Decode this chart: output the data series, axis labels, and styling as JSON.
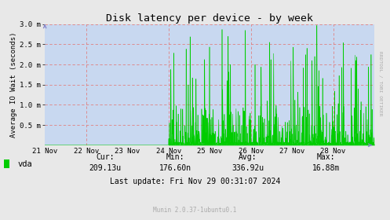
{
  "title": "Disk latency per device - by week",
  "ylabel": "Average IO Wait (seconds)",
  "bg_color": "#e8e8e8",
  "plot_bg_color": "#c8d8f0",
  "grid_color": "#e08080",
  "line_color": "#00cc00",
  "ylim": [
    0,
    3.0
  ],
  "yticks": [
    0.5,
    1.0,
    1.5,
    2.0,
    2.5,
    3.0
  ],
  "ytick_labels": [
    "0.5 m",
    "1.0 m",
    "1.5 m",
    "2.0 m",
    "2.5 m",
    "3.0 m"
  ],
  "xtick_labels": [
    "21 Nov",
    "22 Nov",
    "23 Nov",
    "24 Nov",
    "25 Nov",
    "26 Nov",
    "27 Nov",
    "28 Nov"
  ],
  "xtick_positions": [
    0,
    1,
    2,
    3,
    4,
    5,
    6,
    7
  ],
  "vline_positions": [
    1,
    3,
    5,
    7
  ],
  "legend_label": "vda",
  "legend_color": "#00cc00",
  "cur_label": "Cur:",
  "cur_val": "209.13u",
  "min_label": "Min:",
  "min_val": "176.60n",
  "avg_label": "Avg:",
  "avg_val": "336.92u",
  "max_label": "Max:",
  "max_val": "16.88m",
  "last_update": "Last update: Fri Nov 29 00:31:07 2024",
  "munin_text": "Munin 2.0.37-1ubuntu0.1",
  "rrdtool_text": "RRDTOOL / TOBI OETIKER",
  "arrow_color": "#8888cc"
}
